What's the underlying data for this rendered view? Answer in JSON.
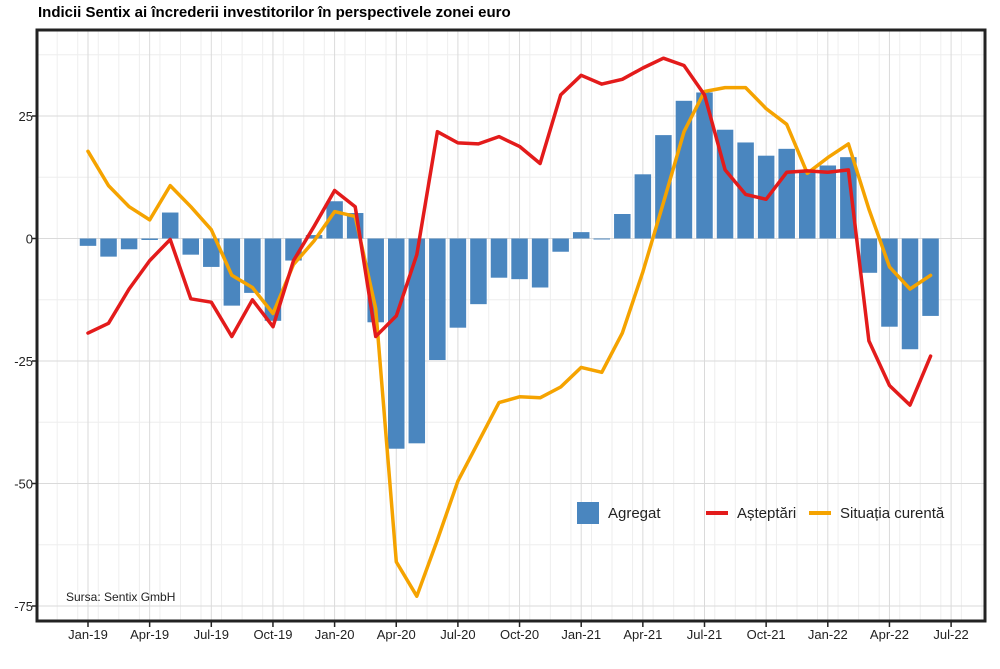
{
  "chart_data": {
    "type": "bar+line",
    "title": "Indicii Sentix ai încrederii investitorilor în perspectivele zonei euro",
    "source": "Sursa: Sentix GmbH",
    "months": [
      "Jan-19",
      "Feb-19",
      "Mar-19",
      "Apr-19",
      "May-19",
      "Jun-19",
      "Jul-19",
      "Aug-19",
      "Sep-19",
      "Oct-19",
      "Nov-19",
      "Dec-19",
      "Jan-20",
      "Feb-20",
      "Mar-20",
      "Apr-20",
      "May-20",
      "Jun-20",
      "Jul-20",
      "Aug-20",
      "Sep-20",
      "Oct-20",
      "Nov-20",
      "Dec-20",
      "Jan-21",
      "Feb-21",
      "Mar-21",
      "Apr-21",
      "May-21",
      "Jun-21",
      "Jul-21",
      "Aug-21",
      "Sep-21",
      "Oct-21",
      "Nov-21",
      "Dec-21",
      "Jan-22",
      "Feb-22",
      "Mar-22",
      "Apr-22",
      "May-22",
      "Jun-22"
    ],
    "x_tick_labels": [
      "Jan-19",
      "Apr-19",
      "Jul-19",
      "Oct-19",
      "Jan-20",
      "Apr-20",
      "Jul-20",
      "Oct-20",
      "Jan-21",
      "Apr-21",
      "Jul-21",
      "Oct-21",
      "Jan-22",
      "Apr-22",
      "Jul-22"
    ],
    "y_ticks": [
      25,
      0,
      -25,
      -50,
      -75
    ],
    "ylim": [
      -77,
      42
    ],
    "series": [
      {
        "name": "Agregat",
        "type": "bar",
        "color": "#4a86bf",
        "values": [
          -1.5,
          -3.7,
          -2.2,
          -0.3,
          5.3,
          -3.3,
          -5.8,
          -13.7,
          -11.1,
          -16.8,
          -4.5,
          0.7,
          7.6,
          5.2,
          -17.1,
          -42.9,
          -41.8,
          -24.8,
          -18.2,
          -13.4,
          -8.0,
          -8.3,
          -10.0,
          -2.7,
          1.3,
          -0.2,
          5.0,
          13.1,
          21.1,
          28.1,
          29.8,
          22.2,
          19.6,
          16.9,
          18.3,
          13.5,
          14.9,
          16.6,
          -7.0,
          -18.0,
          -22.6,
          -15.8
        ]
      },
      {
        "name": "Așteptări",
        "type": "line",
        "color": "#e31b1b",
        "values": [
          -19.3,
          -17.3,
          -10.3,
          -4.5,
          -0.2,
          -12.3,
          -13.0,
          -20.0,
          -12.5,
          -18.0,
          -4.5,
          2.5,
          9.8,
          6.5,
          -20.0,
          -15.8,
          -3.3,
          21.8,
          19.5,
          19.3,
          20.8,
          18.8,
          15.3,
          29.3,
          33.3,
          31.5,
          32.5,
          34.8,
          36.8,
          35.3,
          29.3,
          14.0,
          9.0,
          8.0,
          13.5,
          13.8,
          13.5,
          14.0,
          -20.9,
          -30.0,
          -34.0,
          -24.0
        ]
      },
      {
        "name": "Situația curentă",
        "type": "line",
        "color": "#f5a300",
        "values": [
          17.8,
          10.8,
          6.5,
          3.8,
          10.8,
          6.5,
          1.8,
          -7.5,
          -10.0,
          -15.3,
          -5.3,
          -0.5,
          5.5,
          4.5,
          -14.3,
          -66.0,
          -73.0,
          -61.5,
          -49.5,
          -41.5,
          -33.5,
          -32.3,
          -32.5,
          -30.3,
          -26.3,
          -27.3,
          -19.3,
          -6.8,
          7.3,
          21.8,
          30.0,
          30.8,
          30.8,
          26.5,
          23.3,
          13.3,
          16.5,
          19.3,
          6.0,
          -5.8,
          -10.3,
          -7.5
        ]
      }
    ],
    "legend": {
      "position": "bottom-right",
      "entries": [
        "Agregat",
        "Așteptări",
        "Situația curentă"
      ]
    }
  }
}
